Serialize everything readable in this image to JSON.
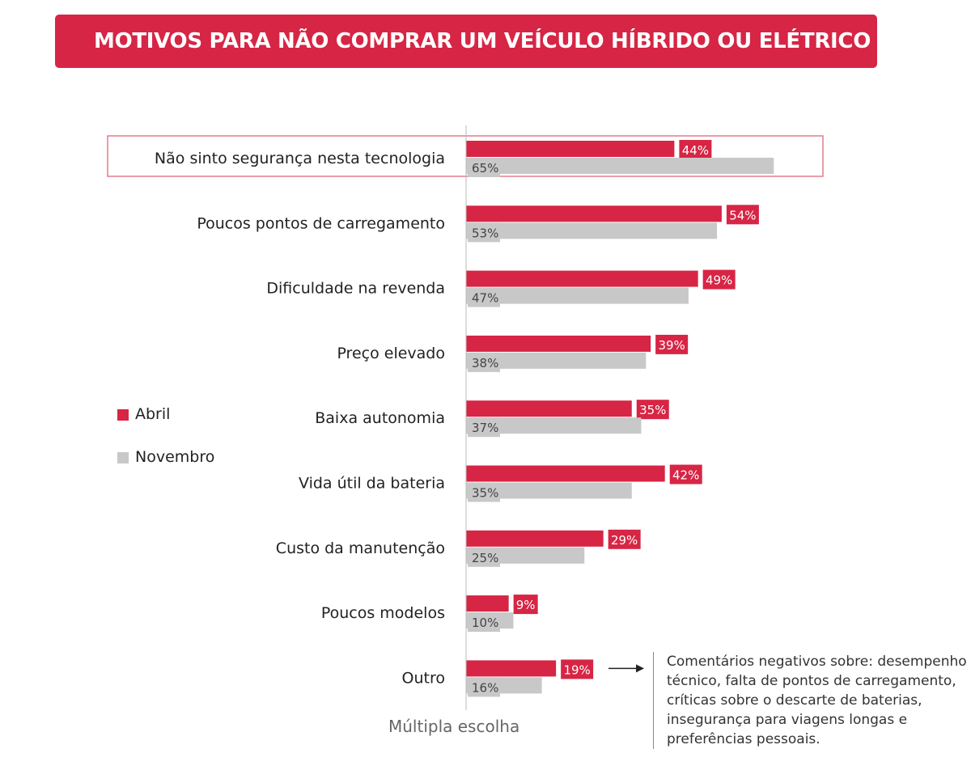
{
  "title": "MOTIVOS PARA NÃO COMPRAR UM VEÍCULO HÍBRIDO OU ELÉTRICO",
  "colors": {
    "primary": "#d72545",
    "secondary": "#c8c8c8",
    "highlight_border": "#e57a8c"
  },
  "legend": {
    "abril": "Abril",
    "novembro": "Novembro"
  },
  "footnote": "Múltipla escolha",
  "annotation": "Comentários negativos sobre: desempenho técnico, falta de pontos de carregamento, críticas sobre o descarte de baterias, insegurança para viagens longas e preferências pessoais.",
  "chart_data": {
    "type": "bar",
    "orientation": "horizontal",
    "categories": [
      "Não sinto segurança nesta tecnologia",
      "Poucos pontos de carregamento",
      "Dificuldade na revenda",
      "Preço elevado",
      "Baixa autonomia",
      "Vida útil da bateria",
      "Custo da manutenção",
      "Poucos modelos",
      "Outro"
    ],
    "series": [
      {
        "name": "Abril",
        "values": [
          44,
          54,
          49,
          39,
          35,
          42,
          29,
          9,
          19
        ]
      },
      {
        "name": "Novembro",
        "values": [
          65,
          53,
          47,
          38,
          37,
          35,
          25,
          10,
          16
        ]
      }
    ],
    "value_suffix": "%",
    "highlighted_category": "Não sinto segurança nesta tecnologia",
    "xlim": [
      0,
      100
    ],
    "grid": false,
    "legend_position": "left"
  }
}
